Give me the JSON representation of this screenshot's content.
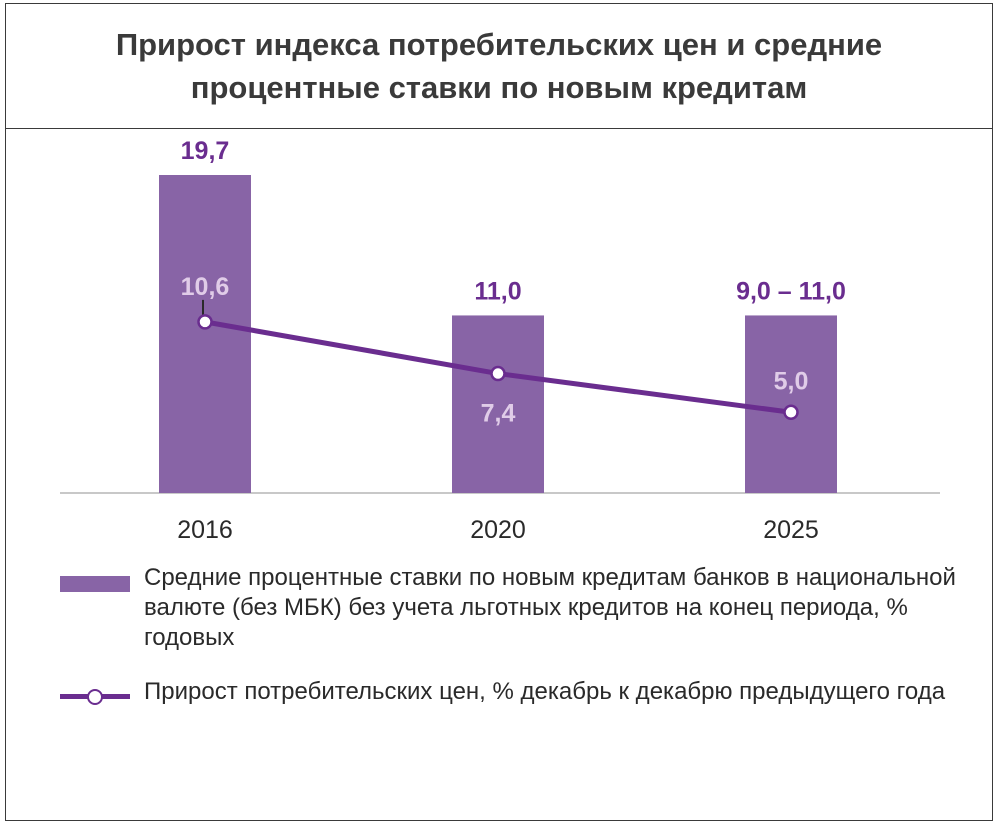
{
  "title": "Прирост индекса потребительских цен и средние процентные ставки по новым кредитам",
  "colors": {
    "bar": "#8864a6",
    "line": "#6a2d8f",
    "bar_label": "#6a2d8f",
    "line_label": "#e0cce8",
    "axis": "#c8c8c8",
    "text": "#2a2a2a"
  },
  "chart_data": {
    "type": "bar",
    "categories": [
      "2016",
      "2020",
      "2025"
    ],
    "series": [
      {
        "name": "Средние процентные ставки по новым кредитам банков в национальной валюте (без МБК) без учета льготных кредитов на конец периода, % годовых",
        "type": "bar",
        "values": [
          19.7,
          11.0,
          11.0
        ],
        "labels": [
          "19,7",
          "11,0",
          "9,0 – 11,0"
        ]
      },
      {
        "name": "Прирост потребительских цен, % декабрь к декабрю предыдущего года",
        "type": "line",
        "values": [
          10.6,
          7.4,
          5.0
        ],
        "labels": [
          "10,6",
          "7,4",
          "5,0"
        ]
      }
    ],
    "ylim": [
      0,
      19.7
    ],
    "grid": false,
    "legend_position": "bottom"
  },
  "legend": {
    "bar_text": "Средние процентные ставки по новым кредитам банков в национальной валюте (без МБК) без учета льготных кредитов на конец периода, % годовых",
    "line_text": "Прирост потребительских цен, % декабрь к декабрю предыдущего года"
  }
}
